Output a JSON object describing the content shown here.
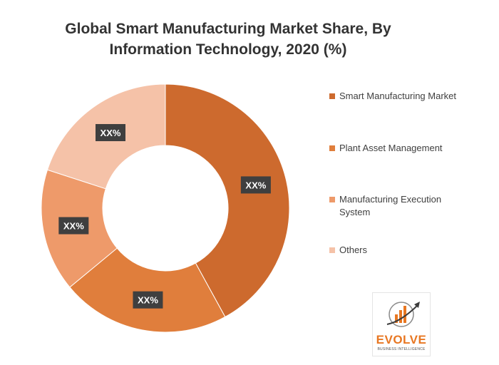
{
  "chart_data": {
    "type": "pie",
    "variant": "donut",
    "title": "Global  Smart Manufacturing Market Share, By Information Technology, 2020 (%)",
    "title_lines": [
      "Global  Smart Manufacturing Market Share, By",
      "Information Technology, 2020 (%)"
    ],
    "categories": [
      "Smart Manufacturing Market",
      "Plant Asset Management",
      "Manufacturing Execution System",
      "Others"
    ],
    "values": [
      42,
      22,
      16,
      20
    ],
    "data_labels": [
      "XX%",
      "XX%",
      "XX%",
      "XX%"
    ],
    "colors": [
      "#cd6a2e",
      "#e07e3c",
      "#ee9a6a",
      "#f5c2a8"
    ],
    "legend_position": "right",
    "start_angle_deg": 0,
    "direction": "clockwise"
  },
  "legend": {
    "items": [
      {
        "label": "Smart Manufacturing Market",
        "color": "#cd6a2e"
      },
      {
        "label": "Plant Asset Management",
        "color": "#e07e3c"
      },
      {
        "label": "Manufacturing Execution System",
        "color": "#ee9a6a"
      },
      {
        "label": "Others",
        "color": "#f5c2a8"
      }
    ]
  },
  "logo": {
    "name": "EVOLVE",
    "tagline": "BUSINESS INTELLIGENCE",
    "icon": "growth-chart-arrow-icon"
  }
}
